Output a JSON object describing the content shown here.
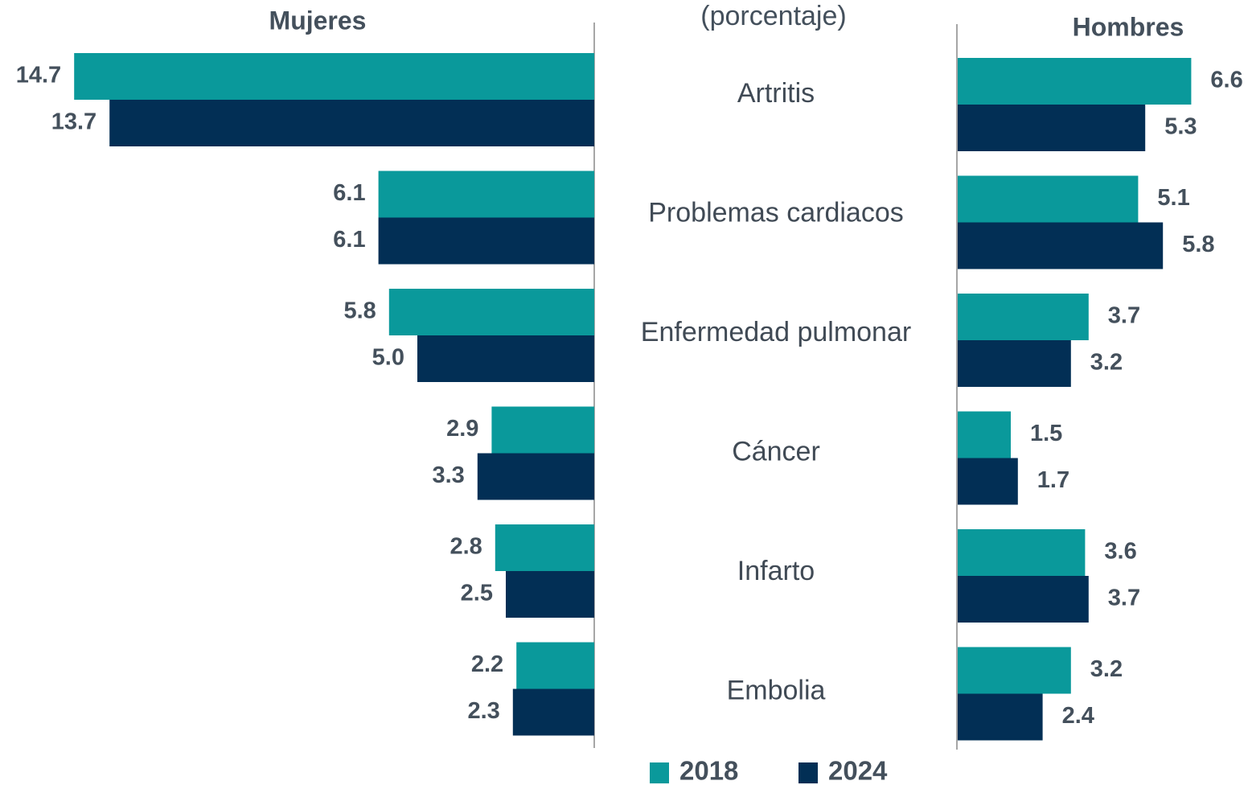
{
  "chart_data": {
    "type": "butterfly-bar",
    "subtitle": "(porcentaje)",
    "categories": [
      "Artritis",
      "Problemas cardiacos",
      "Enfermedad pulmonar",
      "Cáncer",
      "Infarto",
      "Embolia"
    ],
    "series": [
      {
        "name": "2018",
        "color": "#0a999b"
      },
      {
        "name": "2024",
        "color": "#022f55"
      }
    ],
    "panels": [
      {
        "title": "Mujeres",
        "side": "left",
        "values": [
          [
            14.7,
            6.1,
            5.8,
            2.9,
            2.8,
            2.2
          ],
          [
            13.7,
            6.1,
            5.0,
            3.3,
            2.5,
            2.3
          ]
        ],
        "value_labels": [
          [
            "14.7",
            "6.1",
            "5.8",
            "2.9",
            "2.8",
            "2.2"
          ],
          [
            "13.7",
            "6.1",
            "5.0",
            "3.3",
            "2.5",
            "2.3"
          ]
        ]
      },
      {
        "title": "Hombres",
        "side": "right",
        "values": [
          [
            6.6,
            5.1,
            3.7,
            1.5,
            3.6,
            3.2
          ],
          [
            5.3,
            5.8,
            3.2,
            1.7,
            3.7,
            2.4
          ]
        ],
        "value_labels": [
          [
            "6.6",
            "5.1",
            "3.7",
            "1.5",
            "3.6",
            "3.2"
          ],
          [
            "5.3",
            "5.8",
            "3.2",
            "1.7",
            "3.7",
            "2.4"
          ]
        ]
      }
    ]
  }
}
